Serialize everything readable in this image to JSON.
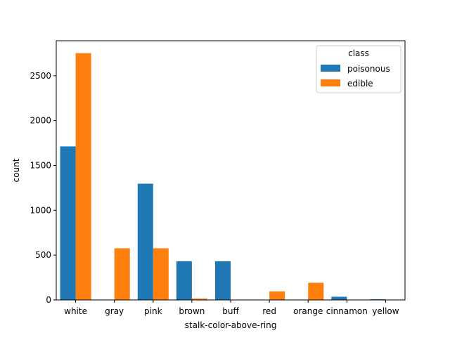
{
  "chart_data": {
    "type": "bar",
    "xlabel": "stalk-color-above-ring",
    "ylabel": "count",
    "categories": [
      "white",
      "gray",
      "pink",
      "brown",
      "buff",
      "red",
      "orange",
      "cinnamon",
      "yellow"
    ],
    "series": [
      {
        "name": "poisonous",
        "color": "#1f77b4",
        "values": [
          1712,
          0,
          1296,
          432,
          432,
          0,
          0,
          36,
          8
        ]
      },
      {
        "name": "edible",
        "color": "#ff7f0e",
        "values": [
          2752,
          576,
          576,
          16,
          0,
          96,
          192,
          0,
          0
        ]
      }
    ],
    "ylim": [
      0,
      2890
    ],
    "yticks": [
      0,
      500,
      1000,
      1500,
      2000,
      2500
    ],
    "legend": {
      "title": "class",
      "placement": "top-right"
    },
    "grid": false
  }
}
